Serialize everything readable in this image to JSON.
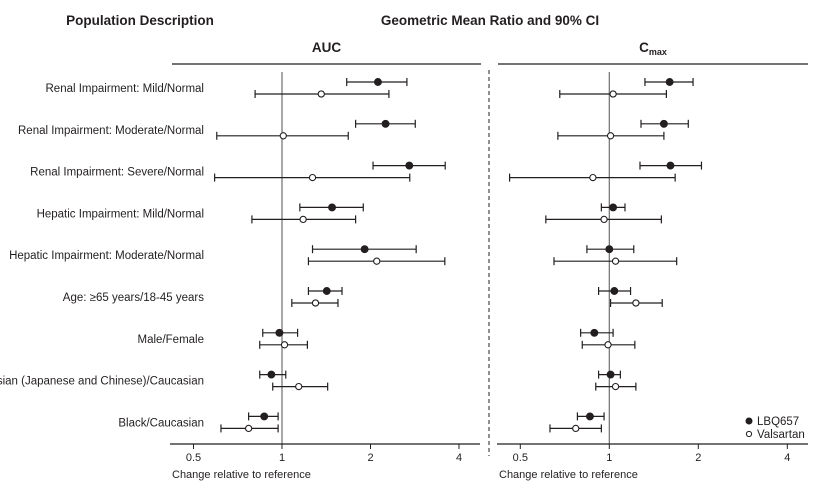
{
  "chart_data": {
    "type": "forest",
    "title": "Geometric Mean Ratio and 90% CI",
    "row_header": "Population Description",
    "xscale": "log2",
    "xlabel": "Change relative to reference",
    "xticks": [
      0.5,
      1,
      2,
      4
    ],
    "xtick_labels": [
      "0.5",
      "1",
      "2",
      "4"
    ],
    "xlim": [
      0.45,
      4.4
    ],
    "reference_line": 1,
    "legend": {
      "placement": "bottom-right",
      "entries": [
        {
          "name": "LBQ657",
          "marker": "filled-circle"
        },
        {
          "name": "Valsartan",
          "marker": "open-circle"
        }
      ]
    },
    "categories": [
      "Renal Impairment: Mild/Normal",
      "Renal Impairment: Moderate/Normal",
      "Renal Impairment: Severe/Normal",
      "Hepatic Impairment: Mild/Normal",
      "Hepatic Impairment: Moderate/Normal",
      "Age: ≥65 years/18-45 years",
      "Male/Female",
      "Asian (Japanese and Chinese)/Caucasian",
      "Black/Caucasian"
    ],
    "panels": [
      {
        "title": "AUC",
        "title_sub": "",
        "series": [
          {
            "name": "LBQ657",
            "values": [
              2.12,
              2.25,
              2.71,
              1.48,
              1.91,
              1.42,
              0.98,
              0.92,
              0.87
            ],
            "lower": [
              1.66,
              1.78,
              2.04,
              1.15,
              1.27,
              1.23,
              0.86,
              0.84,
              0.77
            ],
            "upper": [
              2.66,
              2.84,
              3.59,
              1.89,
              2.86,
              1.6,
              1.13,
              1.03,
              0.97
            ]
          },
          {
            "name": "Valsartan",
            "values": [
              1.36,
              1.01,
              1.27,
              1.18,
              2.1,
              1.3,
              1.02,
              1.14,
              0.77
            ],
            "lower": [
              0.81,
              0.6,
              0.59,
              0.79,
              1.23,
              1.08,
              0.84,
              0.93,
              0.62
            ],
            "upper": [
              2.31,
              1.68,
              2.72,
              1.78,
              3.58,
              1.55,
              1.22,
              1.43,
              0.97
            ]
          }
        ]
      },
      {
        "title": "C",
        "title_sub": "max",
        "series": [
          {
            "name": "LBQ657",
            "values": [
              1.6,
              1.53,
              1.61,
              1.03,
              1.0,
              1.04,
              0.89,
              1.01,
              0.86
            ],
            "lower": [
              1.32,
              1.28,
              1.27,
              0.94,
              0.84,
              0.92,
              0.8,
              0.92,
              0.78
            ],
            "upper": [
              1.92,
              1.85,
              2.05,
              1.13,
              1.21,
              1.18,
              1.03,
              1.09,
              0.96
            ]
          },
          {
            "name": "Valsartan",
            "values": [
              1.03,
              1.01,
              0.88,
              0.96,
              1.05,
              1.23,
              0.99,
              1.05,
              0.77
            ],
            "lower": [
              0.68,
              0.67,
              0.46,
              0.61,
              0.65,
              1.01,
              0.81,
              0.9,
              0.63
            ],
            "upper": [
              1.56,
              1.53,
              1.67,
              1.5,
              1.69,
              1.51,
              1.22,
              1.23,
              0.94
            ]
          }
        ]
      }
    ],
    "colors": {
      "ink": "#231f20",
      "reference_line": "#6d6e71"
    }
  }
}
